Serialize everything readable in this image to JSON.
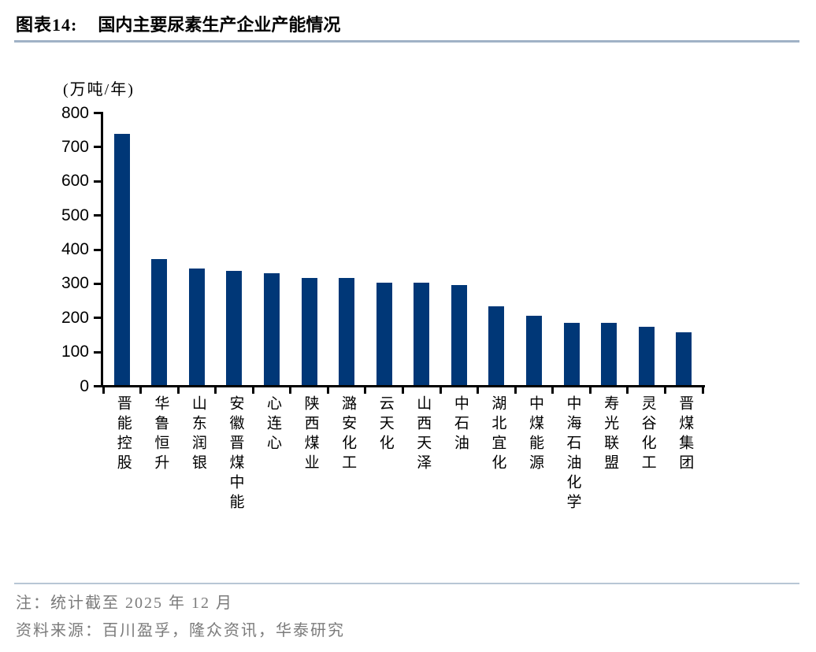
{
  "title": {
    "prefix": "图表14:",
    "text": "国内主要尿素生产企业产能情况"
  },
  "chart_data": {
    "type": "bar",
    "title": "国内主要尿素生产企业产能情况",
    "unit_label": "(万吨/年)",
    "categories": [
      "晋能控股",
      "华鲁恒升",
      "山东润银",
      "安徽晋煤中能",
      "心连心",
      "陕西煤业",
      "潞安化工",
      "云天化",
      "山西天泽",
      "中石油",
      "湖北宜化",
      "中煤能源",
      "中海石油化学",
      "寿光联盟",
      "灵谷化工",
      "晋煤集团"
    ],
    "values": [
      735,
      368,
      341,
      334,
      327,
      314,
      314,
      300,
      300,
      292,
      231,
      203,
      181,
      181,
      170,
      155
    ],
    "ylim": [
      0,
      800
    ],
    "ytick_interval": 100,
    "ytick_labels": [
      "0",
      "100",
      "200",
      "300",
      "400",
      "500",
      "600",
      "700",
      "800"
    ],
    "grid": false,
    "legend": false,
    "bar_color": "#003777",
    "axis_color": "#000000"
  },
  "footer": {
    "note": "注：统计截至 2025 年 12 月",
    "source": "资料来源：百川盈孚，隆众资讯，华泰研究"
  },
  "colors": {
    "title_rule": "#a0b2c6",
    "footer_rule": "#b8c6d5",
    "note_text": "#7b7b7b"
  }
}
